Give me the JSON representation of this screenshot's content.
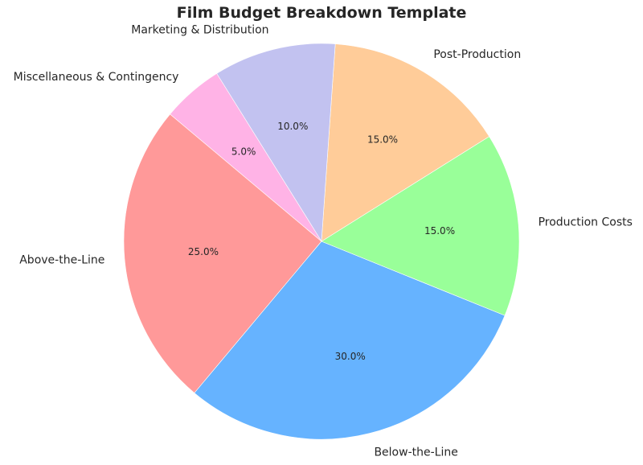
{
  "chart_data": {
    "type": "pie",
    "title": "Film Budget Breakdown Template",
    "categories": [
      "Above-the-Line",
      "Below-the-Line",
      "Production Costs",
      "Post-Production",
      "Marketing & Distribution",
      "Miscellaneous & Contingency"
    ],
    "values": [
      25,
      30,
      15,
      15,
      10,
      5
    ],
    "percent_labels": [
      "25.0%",
      "30.0%",
      "15.0%",
      "15.0%",
      "10.0%",
      "5.0%"
    ],
    "colors": [
      "#ff9999",
      "#66b3ff",
      "#99ff99",
      "#ffcc99",
      "#c2c2f0",
      "#ffb3e6"
    ],
    "start_angle_deg": 140,
    "direction": "counterclockwise"
  }
}
